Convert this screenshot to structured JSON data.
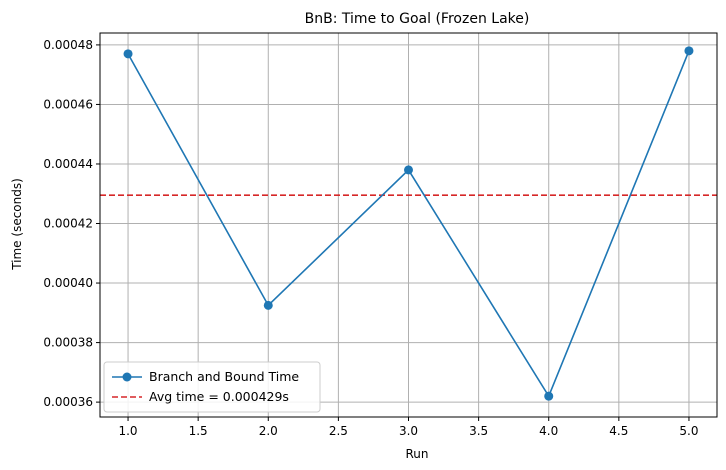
{
  "chart_data": {
    "type": "line",
    "title": "BnB: Time to Goal (Frozen Lake)",
    "xlabel": "Run",
    "ylabel": "Time (seconds)",
    "x": [
      1,
      2,
      3,
      4,
      5
    ],
    "xlim": [
      0.8,
      5.2
    ],
    "ylim": [
      0.000355,
      0.000484
    ],
    "x_ticks": [
      1.0,
      1.5,
      2.0,
      2.5,
      3.0,
      3.5,
      4.0,
      4.5,
      5.0
    ],
    "x_tick_labels": [
      "1.0",
      "1.5",
      "2.0",
      "2.5",
      "3.0",
      "3.5",
      "4.0",
      "4.5",
      "5.0"
    ],
    "y_ticks": [
      0.00036,
      0.00038,
      0.0004,
      0.00042,
      0.00044,
      0.00046,
      0.00048
    ],
    "y_tick_labels": [
      "0.00036",
      "0.00038",
      "0.00040",
      "0.00042",
      "0.00044",
      "0.00046",
      "0.00048"
    ],
    "grid": true,
    "legend_position": "lower-left",
    "series": [
      {
        "name": "Branch and Bound Time",
        "values": [
          0.000477,
          0.0003925,
          0.000438,
          0.000362,
          0.000478
        ],
        "color": "#1f77b4",
        "style": "solid",
        "marker": "circle"
      }
    ],
    "reference_lines": [
      {
        "name": "Avg time = 0.000429s",
        "y": 0.0004295,
        "color": "#d62728",
        "style": "dashed"
      }
    ]
  }
}
